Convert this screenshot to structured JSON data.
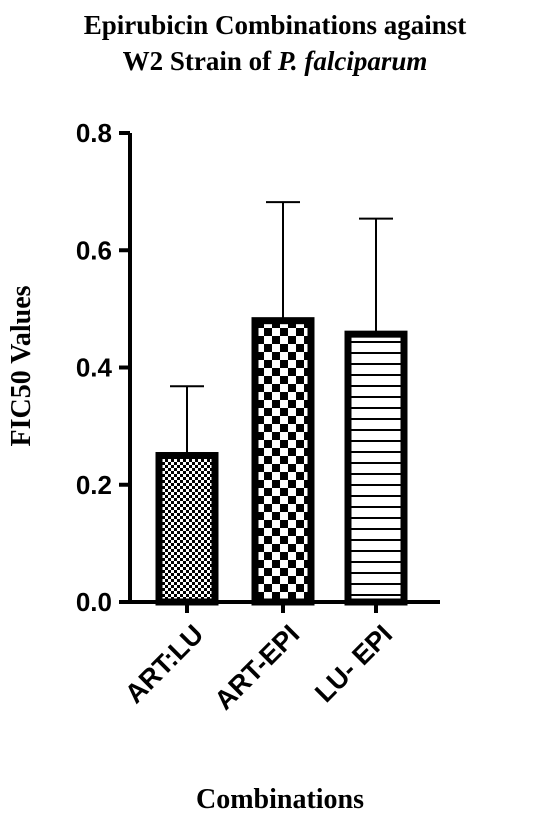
{
  "chart_data": {
    "type": "bar",
    "title_line1": "Epirubicin Combinations against",
    "title_line2_prefix": "W2 Strain of ",
    "title_line2_italic": "P. falciparum",
    "xlabel": "Combinations",
    "ylabel": "FIC50 Values",
    "ylim": [
      0,
      0.8
    ],
    "yticks": [
      "0.0",
      "0.2",
      "0.4",
      "0.6",
      "0.8"
    ],
    "categories": [
      "ART:LU",
      "ART-EPI",
      "LU- EPI"
    ],
    "values": [
      0.255,
      0.485,
      0.462
    ],
    "errors": [
      0.113,
      0.197,
      0.192
    ],
    "patterns": [
      "dots",
      "checker",
      "hlines"
    ],
    "bar_color": "#000000",
    "fill_color": "#ffffff",
    "grid": false,
    "legend": "none"
  }
}
